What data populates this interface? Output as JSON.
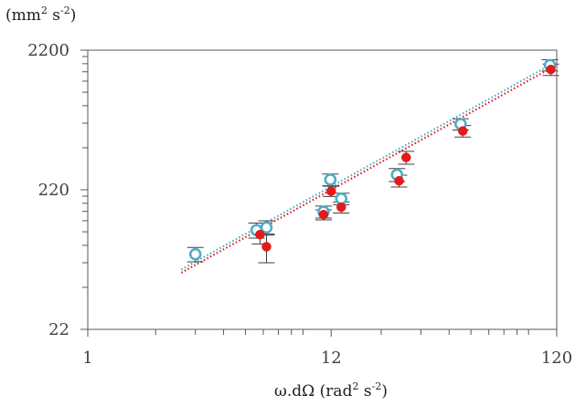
{
  "chart_data": {
    "type": "scatter",
    "title": "",
    "xlabel": {
      "base": "ω.dΩ (rad",
      "sup1": "2",
      "mid": " s",
      "sup2": "-2",
      "end": ")"
    },
    "ylabel": {
      "base": "(mm",
      "sup1": "2",
      "mid": " s",
      "sup2": "-2",
      "end": ")"
    },
    "x_scale": "log",
    "y_scale": "log",
    "xlim": [
      1,
      120
    ],
    "ylim": [
      22,
      2200
    ],
    "x_ticks": [
      {
        "value": 1,
        "label": "1"
      },
      {
        "value": 12,
        "label": "12"
      },
      {
        "value": 120,
        "label": "120"
      }
    ],
    "y_ticks": [
      {
        "value": 22,
        "label": "22"
      },
      {
        "value": 220,
        "label": "220"
      },
      {
        "value": 2200,
        "label": "2200"
      }
    ],
    "grid": false,
    "legend": "none",
    "series": [
      {
        "marker": "open-circle",
        "color": "#4bacc6",
        "points": [
          {
            "x": 3.0,
            "y": 76,
            "err": 9
          },
          {
            "x": 5.6,
            "y": 113,
            "err": 14
          },
          {
            "x": 6.2,
            "y": 118,
            "err": 14
          },
          {
            "x": 11.1,
            "y": 153,
            "err": 15
          },
          {
            "x": 11.9,
            "y": 260,
            "err": 25
          },
          {
            "x": 13.3,
            "y": 190,
            "err": 18
          },
          {
            "x": 23.5,
            "y": 282,
            "err": 30
          },
          {
            "x": 45.0,
            "y": 650,
            "err": 60
          },
          {
            "x": 112.0,
            "y": 1720,
            "err": 160
          }
        ],
        "fit": {
          "x": [
            2.6,
            115.0
          ],
          "y": [
            59,
            1760
          ]
        }
      },
      {
        "marker": "filled-circle",
        "color": "#e51a1a",
        "points": [
          {
            "x": 5.8,
            "y": 105,
            "err": 15
          },
          {
            "x": 6.2,
            "y": 86,
            "err": 20
          },
          {
            "x": 11.1,
            "y": 146,
            "err": 12
          },
          {
            "x": 12.0,
            "y": 215,
            "err": 18
          },
          {
            "x": 13.3,
            "y": 165,
            "err": 15
          },
          {
            "x": 24.0,
            "y": 255,
            "err": 25
          },
          {
            "x": 25.8,
            "y": 375,
            "err": 40
          },
          {
            "x": 46.0,
            "y": 580,
            "err": 55
          },
          {
            "x": 113.0,
            "y": 1600,
            "err": 150
          }
        ],
        "fit": {
          "x": [
            2.6,
            115.0
          ],
          "y": [
            56,
            1660
          ]
        }
      }
    ]
  }
}
